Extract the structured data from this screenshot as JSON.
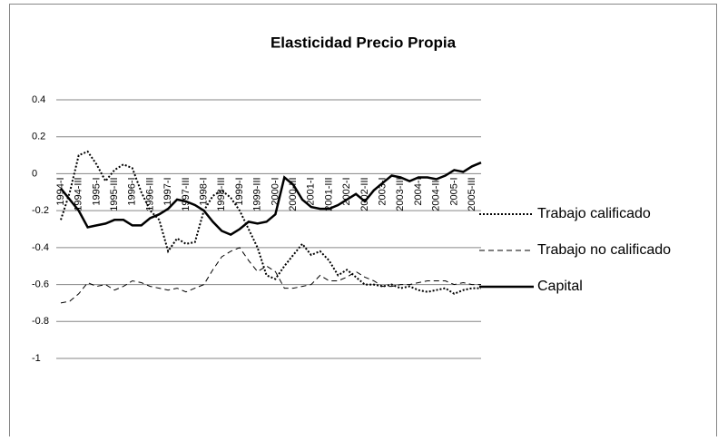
{
  "chart_data": {
    "type": "line",
    "title": "Elasticidad Precio Propia",
    "categories": [
      "1994-I",
      null,
      "1994-III",
      null,
      "1995-I",
      null,
      "1995-III",
      null,
      "1996-I",
      null,
      "1996-III",
      null,
      "1997-I",
      null,
      "1997-III",
      null,
      "1998-I",
      null,
      "1998-III",
      null,
      "1999-I",
      null,
      "1999-III",
      null,
      "2000-I",
      null,
      "2000-III",
      null,
      "2001-I",
      null,
      "2001-III",
      null,
      "2002-I",
      null,
      "2002-III",
      null,
      "2003-I",
      null,
      "2003-III",
      null,
      "2004-I",
      null,
      "2004-III",
      null,
      "2005-I",
      null,
      "2005-III",
      null
    ],
    "series": [
      {
        "name": "Trabajo calificado",
        "color": "#000000",
        "dash": "dotted",
        "values": [
          -0.25,
          -0.1,
          0.1,
          0.12,
          0.05,
          -0.04,
          0.02,
          0.05,
          0.03,
          -0.1,
          -0.2,
          -0.25,
          -0.42,
          -0.35,
          -0.38,
          -0.37,
          -0.2,
          -0.12,
          -0.09,
          -0.13,
          -0.2,
          -0.3,
          -0.4,
          -0.55,
          -0.57,
          -0.5,
          -0.44,
          -0.38,
          -0.44,
          -0.42,
          -0.47,
          -0.55,
          -0.52,
          -0.56,
          -0.6,
          -0.6,
          -0.61,
          -0.6,
          -0.62,
          -0.61,
          -0.63,
          -0.64,
          -0.63,
          -0.62,
          -0.65,
          -0.63,
          -0.62,
          -0.62
        ]
      },
      {
        "name": "Trabajo no calificado",
        "color": "#000000",
        "dash": "dashed",
        "values": [
          -0.7,
          -0.69,
          -0.65,
          -0.59,
          -0.61,
          -0.6,
          -0.63,
          -0.61,
          -0.58,
          -0.59,
          -0.61,
          -0.62,
          -0.63,
          -0.62,
          -0.64,
          -0.62,
          -0.6,
          -0.52,
          -0.45,
          -0.42,
          -0.4,
          -0.47,
          -0.53,
          -0.5,
          -0.53,
          -0.62,
          -0.62,
          -0.61,
          -0.6,
          -0.55,
          -0.58,
          -0.58,
          -0.56,
          -0.53,
          -0.56,
          -0.58,
          -0.61,
          -0.61,
          -0.6,
          -0.6,
          -0.59,
          -0.58,
          -0.58,
          -0.58,
          -0.6,
          -0.59,
          -0.6,
          -0.6
        ]
      },
      {
        "name": "Capital",
        "color": "#000000",
        "dash": "solid",
        "values": [
          -0.08,
          -0.14,
          -0.2,
          -0.29,
          -0.28,
          -0.27,
          -0.25,
          -0.25,
          -0.28,
          -0.28,
          -0.24,
          -0.22,
          -0.19,
          -0.14,
          -0.15,
          -0.17,
          -0.2,
          -0.26,
          -0.31,
          -0.33,
          -0.3,
          -0.26,
          -0.27,
          -0.26,
          -0.22,
          -0.02,
          -0.06,
          -0.14,
          -0.18,
          -0.19,
          -0.19,
          -0.17,
          -0.14,
          -0.11,
          -0.15,
          -0.09,
          -0.05,
          -0.01,
          -0.02,
          -0.04,
          -0.02,
          -0.02,
          -0.03,
          -0.01,
          0.02,
          0.01,
          0.04,
          0.06
        ]
      }
    ],
    "ylim": [
      -1,
      0.4
    ],
    "yticks": [
      0.4,
      0.2,
      0,
      -0.2,
      -0.4,
      -0.6,
      -0.8,
      -1
    ],
    "grid": true,
    "legend": "right"
  }
}
